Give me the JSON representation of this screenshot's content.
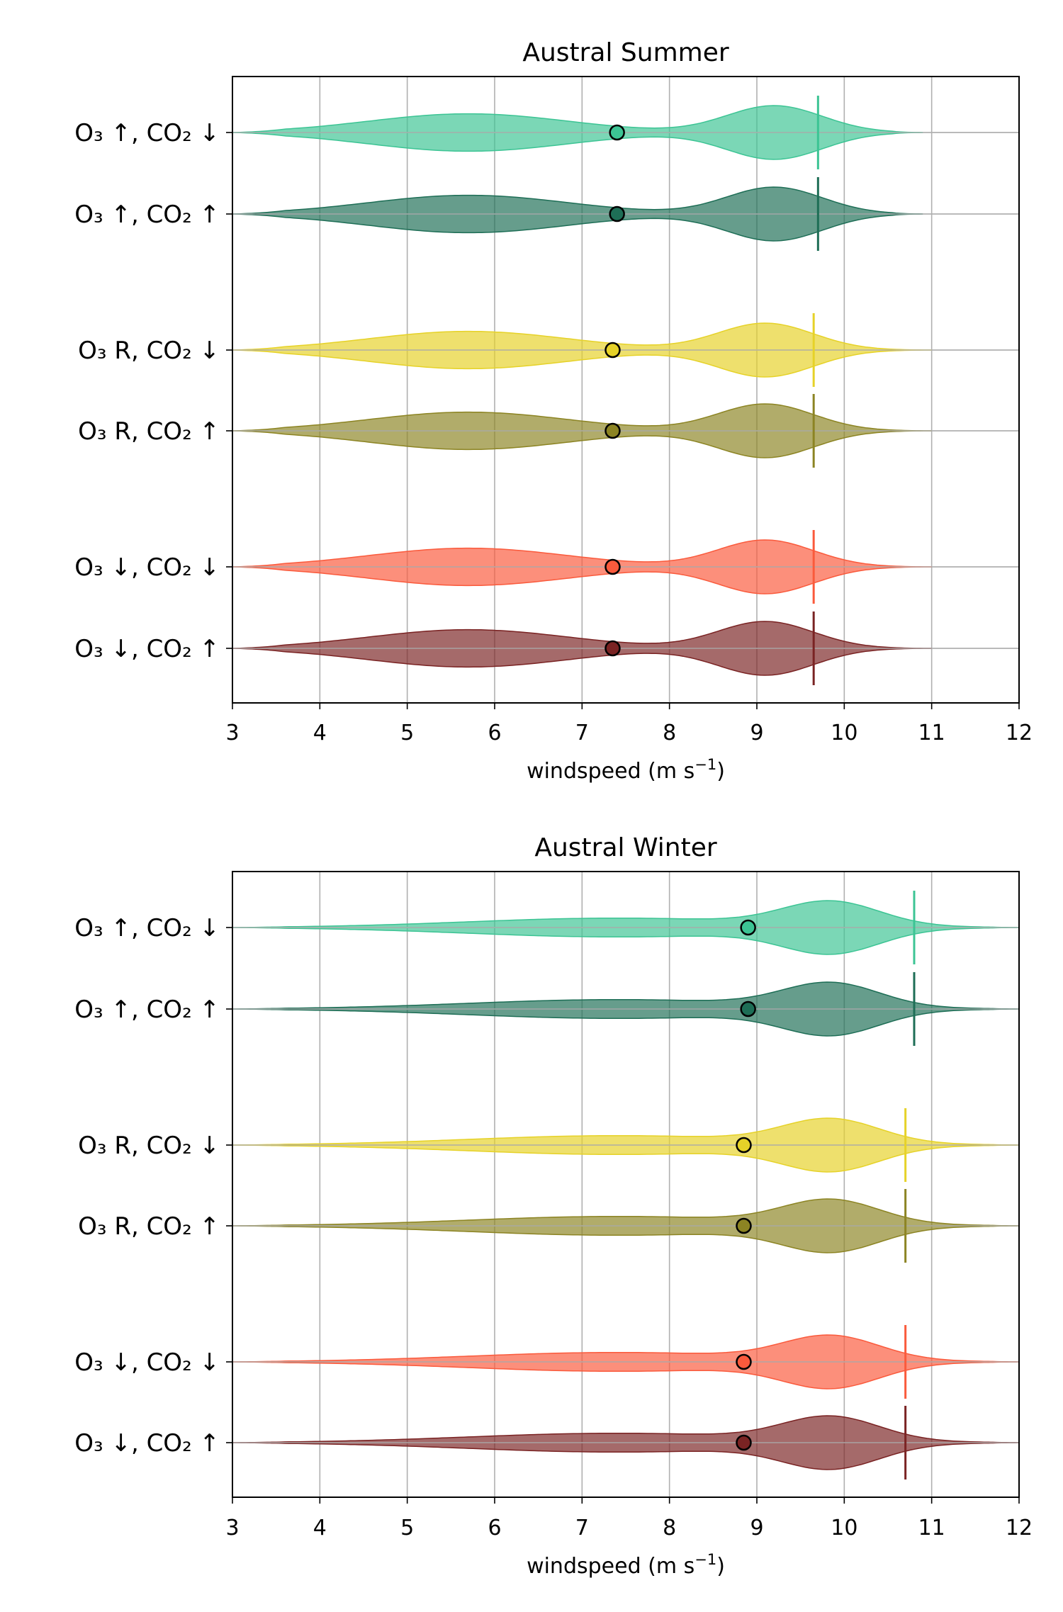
{
  "colors": {
    "series": [
      "#3cc494",
      "#1e6e56",
      "#e6d228",
      "#8c8423",
      "#fa5a3c",
      "#7a2323"
    ],
    "grid": "#b0b0b0",
    "axes": "#000000"
  },
  "chart_data": [
    {
      "type": "violin",
      "title": "Austral Summer",
      "xlabel": "windspeed (m s",
      "xlabel_sup": "−1",
      "xlabel_end": ")",
      "xlim": [
        3,
        12
      ],
      "xticks": [
        "3",
        "4",
        "5",
        "6",
        "7",
        "8",
        "9",
        "10",
        "11",
        "12"
      ],
      "grid": true,
      "series": [
        {
          "label": "O₃ ↑, CO₂ ↓",
          "mean": 7.4,
          "p95": 9.7,
          "range": [
            3.0,
            10.9
          ],
          "modes": [
            5.7,
            9.2
          ],
          "peak_heights": [
            0.7,
            1.0
          ]
        },
        {
          "label": "O₃ ↑, CO₂ ↑",
          "mean": 7.4,
          "p95": 9.7,
          "range": [
            3.0,
            10.9
          ],
          "modes": [
            5.7,
            9.2
          ],
          "peak_heights": [
            0.7,
            1.0
          ]
        },
        {
          "label": "O₃ R, CO₂ ↓",
          "mean": 7.35,
          "p95": 9.65,
          "range": [
            3.0,
            11.0
          ],
          "modes": [
            5.7,
            9.1
          ],
          "peak_heights": [
            0.7,
            1.0
          ]
        },
        {
          "label": "O₃ R, CO₂ ↑",
          "mean": 7.35,
          "p95": 9.65,
          "range": [
            3.0,
            11.0
          ],
          "modes": [
            5.7,
            9.1
          ],
          "peak_heights": [
            0.7,
            1.0
          ]
        },
        {
          "label": "O₃ ↓, CO₂ ↓",
          "mean": 7.35,
          "p95": 9.65,
          "range": [
            3.0,
            11.0
          ],
          "modes": [
            5.7,
            9.1
          ],
          "peak_heights": [
            0.7,
            1.0
          ]
        },
        {
          "label": "O₃ ↓, CO₂ ↑",
          "mean": 7.35,
          "p95": 9.65,
          "range": [
            3.0,
            11.0
          ],
          "modes": [
            5.7,
            9.1
          ],
          "peak_heights": [
            0.7,
            1.0
          ]
        }
      ]
    },
    {
      "type": "violin",
      "title": "Austral Winter",
      "xlabel": "windspeed (m s",
      "xlabel_sup": "−1",
      "xlabel_end": ")",
      "xlim": [
        3,
        12
      ],
      "xticks": [
        "3",
        "4",
        "5",
        "6",
        "7",
        "8",
        "9",
        "10",
        "11",
        "12"
      ],
      "grid": true,
      "series": [
        {
          "label": "O₃ ↑, CO₂ ↓",
          "mean": 8.9,
          "p95": 10.8,
          "range": [
            3.0,
            12.0
          ],
          "modes": [
            7.4,
            9.85
          ],
          "peak_heights": [
            0.4,
            1.0
          ]
        },
        {
          "label": "O₃ ↑, CO₂ ↑",
          "mean": 8.9,
          "p95": 10.8,
          "range": [
            3.0,
            12.0
          ],
          "modes": [
            7.4,
            9.85
          ],
          "peak_heights": [
            0.4,
            1.0
          ]
        },
        {
          "label": "O₃ R, CO₂ ↓",
          "mean": 8.85,
          "p95": 10.7,
          "range": [
            3.0,
            12.0
          ],
          "modes": [
            7.4,
            9.85
          ],
          "peak_heights": [
            0.4,
            1.0
          ]
        },
        {
          "label": "O₃ R, CO₂ ↑",
          "mean": 8.85,
          "p95": 10.7,
          "range": [
            3.0,
            12.0
          ],
          "modes": [
            7.4,
            9.85
          ],
          "peak_heights": [
            0.4,
            1.0
          ]
        },
        {
          "label": "O₃ ↓, CO₂ ↓",
          "mean": 8.85,
          "p95": 10.7,
          "range": [
            3.0,
            12.0
          ],
          "modes": [
            7.4,
            9.85
          ],
          "peak_heights": [
            0.4,
            1.0
          ]
        },
        {
          "label": "O₃ ↓, CO₂ ↑",
          "mean": 8.85,
          "p95": 10.7,
          "range": [
            3.0,
            12.0
          ],
          "modes": [
            7.4,
            9.85
          ],
          "peak_heights": [
            0.4,
            1.0
          ]
        }
      ]
    }
  ]
}
